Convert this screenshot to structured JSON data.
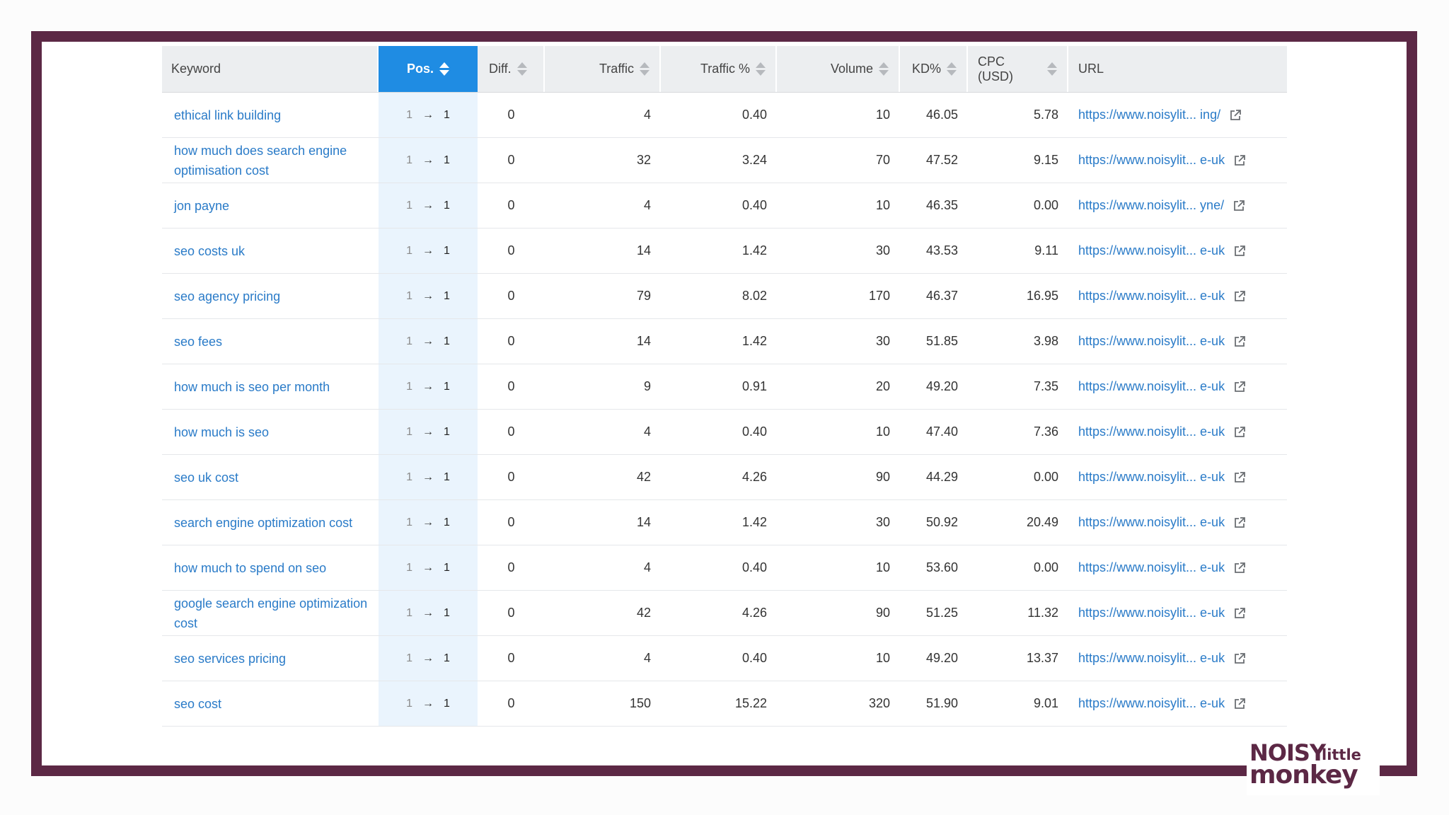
{
  "table": {
    "columns": {
      "keyword": "Keyword",
      "pos": "Pos.",
      "diff": "Diff.",
      "traffic": "Traffic",
      "traffic_pct": "Traffic %",
      "volume": "Volume",
      "kd": "KD%",
      "cpc": "CPC (USD)",
      "url": "URL"
    },
    "rows": [
      {
        "keyword": "ethical link building",
        "pos_from": "1",
        "pos_to": "1",
        "diff": "0",
        "traffic": "4",
        "traffic_pct": "0.40",
        "volume": "10",
        "kd": "46.05",
        "cpc": "5.78",
        "url": "https://www.noisylit... ing/"
      },
      {
        "keyword": "how much does search engine optimisation cost",
        "pos_from": "1",
        "pos_to": "1",
        "diff": "0",
        "traffic": "32",
        "traffic_pct": "3.24",
        "volume": "70",
        "kd": "47.52",
        "cpc": "9.15",
        "url": "https://www.noisylit... e-uk"
      },
      {
        "keyword": "jon payne",
        "pos_from": "1",
        "pos_to": "1",
        "diff": "0",
        "traffic": "4",
        "traffic_pct": "0.40",
        "volume": "10",
        "kd": "46.35",
        "cpc": "0.00",
        "url": "https://www.noisylit... yne/"
      },
      {
        "keyword": "seo costs uk",
        "pos_from": "1",
        "pos_to": "1",
        "diff": "0",
        "traffic": "14",
        "traffic_pct": "1.42",
        "volume": "30",
        "kd": "43.53",
        "cpc": "9.11",
        "url": "https://www.noisylit... e-uk"
      },
      {
        "keyword": "seo agency pricing",
        "pos_from": "1",
        "pos_to": "1",
        "diff": "0",
        "traffic": "79",
        "traffic_pct": "8.02",
        "volume": "170",
        "kd": "46.37",
        "cpc": "16.95",
        "url": "https://www.noisylit... e-uk"
      },
      {
        "keyword": "seo fees",
        "pos_from": "1",
        "pos_to": "1",
        "diff": "0",
        "traffic": "14",
        "traffic_pct": "1.42",
        "volume": "30",
        "kd": "51.85",
        "cpc": "3.98",
        "url": "https://www.noisylit... e-uk"
      },
      {
        "keyword": "how much is seo per month",
        "pos_from": "1",
        "pos_to": "1",
        "diff": "0",
        "traffic": "9",
        "traffic_pct": "0.91",
        "volume": "20",
        "kd": "49.20",
        "cpc": "7.35",
        "url": "https://www.noisylit... e-uk"
      },
      {
        "keyword": "how much is seo",
        "pos_from": "1",
        "pos_to": "1",
        "diff": "0",
        "traffic": "4",
        "traffic_pct": "0.40",
        "volume": "10",
        "kd": "47.40",
        "cpc": "7.36",
        "url": "https://www.noisylit... e-uk"
      },
      {
        "keyword": "seo uk cost",
        "pos_from": "1",
        "pos_to": "1",
        "diff": "0",
        "traffic": "42",
        "traffic_pct": "4.26",
        "volume": "90",
        "kd": "44.29",
        "cpc": "0.00",
        "url": "https://www.noisylit... e-uk"
      },
      {
        "keyword": "search engine optimization cost",
        "pos_from": "1",
        "pos_to": "1",
        "diff": "0",
        "traffic": "14",
        "traffic_pct": "1.42",
        "volume": "30",
        "kd": "50.92",
        "cpc": "20.49",
        "url": "https://www.noisylit... e-uk"
      },
      {
        "keyword": "how much to spend on seo",
        "pos_from": "1",
        "pos_to": "1",
        "diff": "0",
        "traffic": "4",
        "traffic_pct": "0.40",
        "volume": "10",
        "kd": "53.60",
        "cpc": "0.00",
        "url": "https://www.noisylit... e-uk"
      },
      {
        "keyword": "google search engine optimization cost",
        "pos_from": "1",
        "pos_to": "1",
        "diff": "0",
        "traffic": "42",
        "traffic_pct": "4.26",
        "volume": "90",
        "kd": "51.25",
        "cpc": "11.32",
        "url": "https://www.noisylit... e-uk"
      },
      {
        "keyword": "seo services pricing",
        "pos_from": "1",
        "pos_to": "1",
        "diff": "0",
        "traffic": "4",
        "traffic_pct": "0.40",
        "volume": "10",
        "kd": "49.20",
        "cpc": "13.37",
        "url": "https://www.noisylit... e-uk"
      },
      {
        "keyword": "seo cost",
        "pos_from": "1",
        "pos_to": "1",
        "diff": "0",
        "traffic": "150",
        "traffic_pct": "15.22",
        "volume": "320",
        "kd": "51.90",
        "cpc": "9.01",
        "url": "https://www.noisylit... e-uk"
      }
    ]
  },
  "logo": {
    "noisy": "NOISY",
    "little": "little",
    "monkey": "monkey"
  },
  "colors": {
    "frame": "#5c2845",
    "link": "#2a7bc8",
    "active_header": "#1f8ce3",
    "active_column": "#eaf4fd"
  },
  "icons": {
    "position_arrow": "arrow-right-icon",
    "external_link": "external-link-icon",
    "sort": "sort-icon"
  }
}
